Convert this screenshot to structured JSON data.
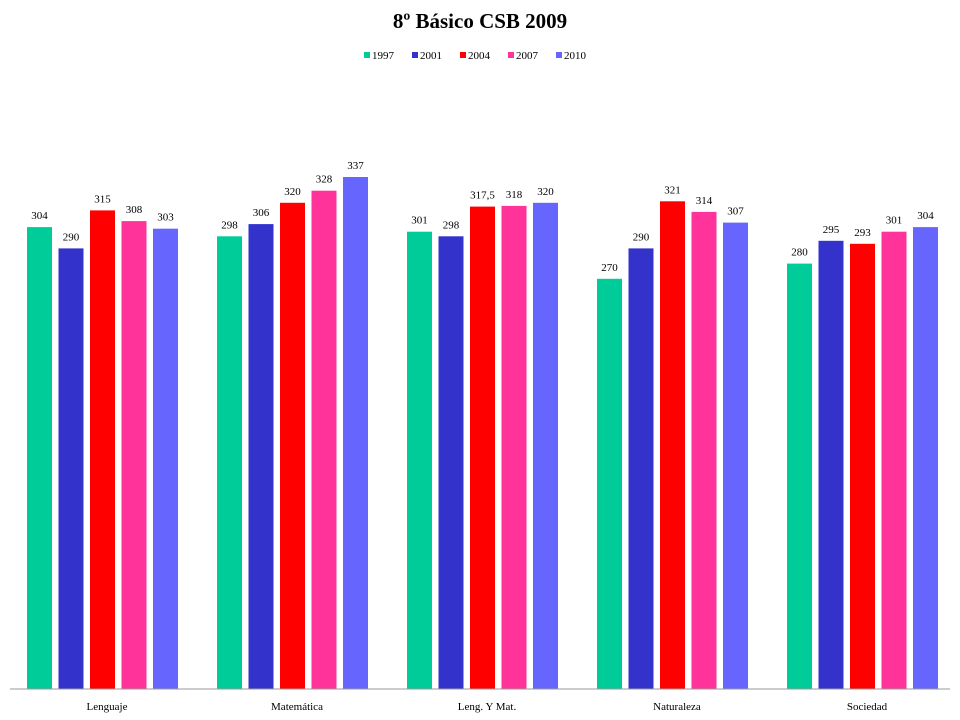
{
  "chart_data": {
    "type": "bar",
    "title": "8º Básico CSB 2009",
    "xlabel": "",
    "ylabel": "",
    "categories": [
      "Lenguaje",
      "Matemática",
      "Leng. Y Mat.",
      "Naturaleza",
      "Sociedad"
    ],
    "series": [
      {
        "name": "1997",
        "color": "#00CC99",
        "values": [
          304,
          298,
          301,
          270,
          280
        ],
        "labels": [
          "304",
          "298",
          "301",
          "270",
          "280"
        ]
      },
      {
        "name": "2001",
        "color": "#3333CC",
        "values": [
          290,
          306,
          298,
          290,
          295
        ],
        "labels": [
          "290",
          "306",
          "298",
          "290",
          "295"
        ]
      },
      {
        "name": "2004",
        "color": "#FF0000",
        "values": [
          315,
          320,
          317.5,
          321,
          293
        ],
        "labels": [
          "315",
          "320",
          "317,5",
          "321",
          "293"
        ]
      },
      {
        "name": "2007",
        "color": "#FF3399",
        "values": [
          308,
          328,
          318,
          314,
          301
        ],
        "labels": [
          "308",
          "328",
          "318",
          "314",
          "301"
        ]
      },
      {
        "name": "2010",
        "color": "#6666FF",
        "values": [
          303,
          337,
          320,
          307,
          304
        ],
        "labels": [
          "303",
          "337",
          "320",
          "307",
          "304"
        ]
      }
    ],
    "ylim": [
      0,
      350
    ],
    "grid": false,
    "legend_position": "top-center",
    "show_y_axis": false
  }
}
